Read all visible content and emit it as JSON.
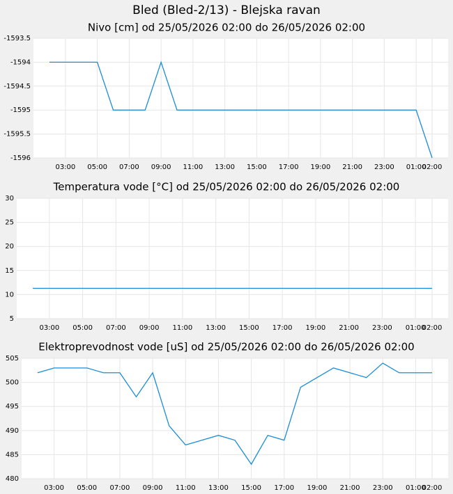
{
  "title": "Bled (Bled-2/13) - Blejska ravan",
  "chart_data": [
    {
      "type": "line",
      "title": "Nivo [cm] od 25/05/2026 02:00 do 26/05/2026 02:00",
      "categories": [
        null,
        "03:00",
        null,
        "05:00",
        null,
        "07:00",
        null,
        "09:00",
        null,
        "11:00",
        null,
        "13:00",
        null,
        "15:00",
        null,
        "17:00",
        null,
        "19:00",
        null,
        "21:00",
        null,
        "23:00",
        null,
        "01:00",
        "02:00"
      ],
      "series": [
        {
          "color": "#1a8cd8",
          "values": [
            -1594,
            -1594,
            -1594,
            -1594,
            -1595,
            -1595,
            -1595,
            -1594,
            -1595,
            -1595,
            -1595,
            -1595,
            -1595,
            -1595,
            -1595,
            -1595,
            -1595,
            -1595,
            -1595,
            -1595,
            -1595,
            -1595,
            -1595,
            -1595,
            -1596
          ]
        }
      ],
      "ylim": [
        -1596,
        -1593.5
      ],
      "yticks": [
        -1596,
        -1595.5,
        -1595,
        -1594.5,
        -1594,
        -1593.5
      ],
      "grid": true
    },
    {
      "type": "line",
      "title": "Temperatura vode [°C] od 25/05/2026 02:00 do 26/05/2026 02:00",
      "categories": [
        null,
        "03:00",
        null,
        "05:00",
        null,
        "07:00",
        null,
        "09:00",
        null,
        "11:00",
        null,
        "13:00",
        null,
        "15:00",
        null,
        "17:00",
        null,
        "19:00",
        null,
        "21:00",
        null,
        "23:00",
        null,
        "01:00",
        "02:00"
      ],
      "series": [
        {
          "color": "#1a8cd8",
          "values": [
            11.3,
            11.3,
            11.3,
            11.3,
            11.3,
            11.3,
            11.3,
            11.3,
            11.3,
            11.3,
            11.3,
            11.3,
            11.3,
            11.3,
            11.3,
            11.3,
            11.3,
            11.3,
            11.3,
            11.3,
            11.3,
            11.3,
            11.3,
            11.3,
            11.3
          ]
        }
      ],
      "ylim": [
        5,
        30
      ],
      "yticks": [
        5,
        10,
        15,
        20,
        25,
        30
      ],
      "grid": true
    },
    {
      "type": "line",
      "title": "Elektroprevodnost vode [uS] od 25/05/2026 02:00 do 26/05/2026 02:00",
      "categories": [
        null,
        "03:00",
        null,
        "05:00",
        null,
        "07:00",
        null,
        "09:00",
        null,
        "11:00",
        null,
        "13:00",
        null,
        "15:00",
        null,
        "17:00",
        null,
        "19:00",
        null,
        "21:00",
        null,
        "23:00",
        null,
        "01:00",
        "02:00"
      ],
      "series": [
        {
          "color": "#1a8cd8",
          "values": [
            502,
            503,
            503,
            503,
            502,
            502,
            497,
            502,
            491,
            487,
            488,
            489,
            488,
            483,
            489,
            488,
            499,
            501,
            503,
            502,
            501,
            504,
            502,
            502,
            502
          ]
        }
      ],
      "ylim": [
        480,
        505
      ],
      "yticks": [
        480,
        485,
        490,
        495,
        500,
        505
      ],
      "grid": true
    }
  ]
}
